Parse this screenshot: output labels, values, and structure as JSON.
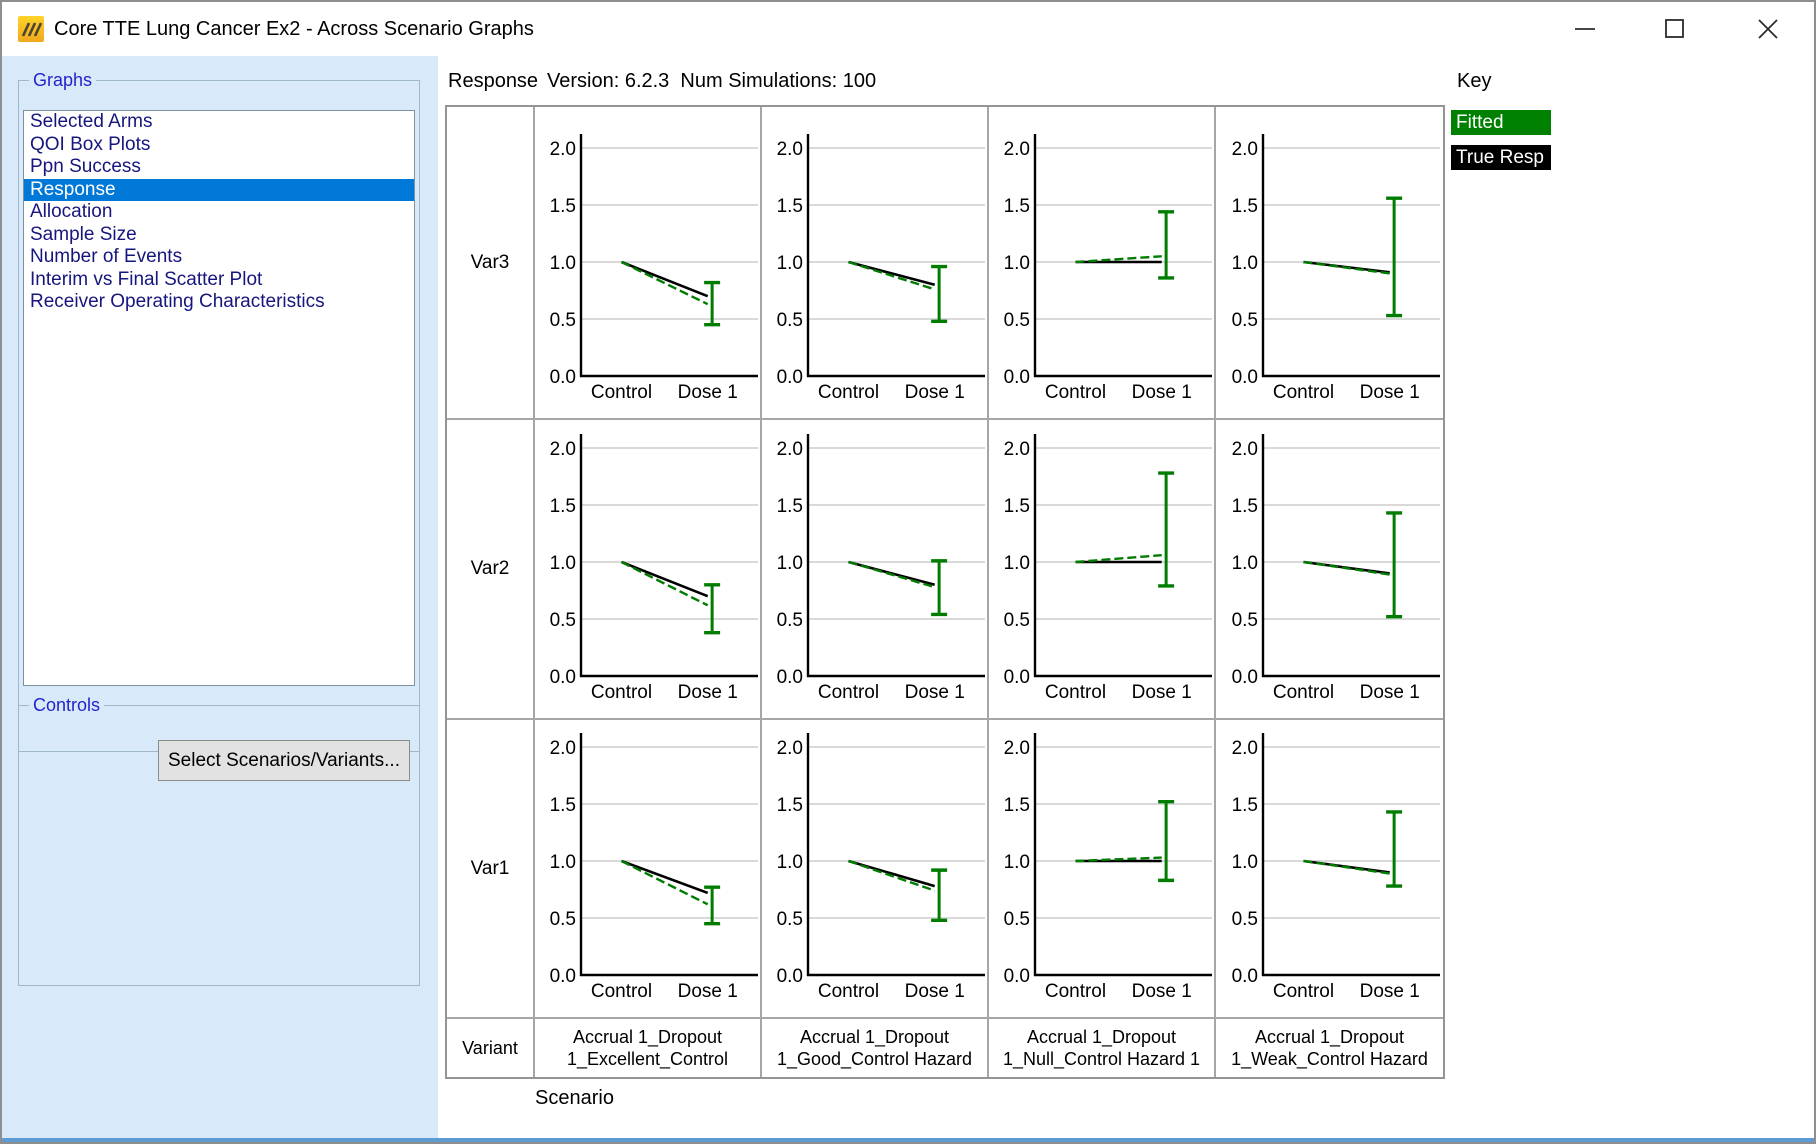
{
  "window": {
    "title": "Core TTE Lung Cancer Ex2 - Across Scenario Graphs",
    "controls": {
      "minimize": "minimize",
      "maximize": "maximize",
      "close": "close"
    }
  },
  "sidebar": {
    "graphs_group_label": "Graphs",
    "graph_items": [
      {
        "label": "Selected Arms",
        "selected": false
      },
      {
        "label": "QOI Box Plots",
        "selected": false
      },
      {
        "label": "Ppn Success",
        "selected": false
      },
      {
        "label": "Response",
        "selected": true
      },
      {
        "label": "Allocation",
        "selected": false
      },
      {
        "label": "Sample Size",
        "selected": false
      },
      {
        "label": "Number of Events",
        "selected": false
      },
      {
        "label": "Interim vs Final Scatter Plot",
        "selected": false
      },
      {
        "label": "Receiver Operating Characteristics",
        "selected": false
      }
    ],
    "controls_group_label": "Controls",
    "select_button_label": "Select Scenarios/Variants..."
  },
  "header": {
    "graph_title": "Response",
    "version_info": "Version: 6.2.3  Num Simulations: 100",
    "key_label": "Key"
  },
  "legend": {
    "items": [
      {
        "label": "Fitted",
        "color": "#008000",
        "text_color": "#ffffff"
      },
      {
        "label": "True Resp",
        "color": "#000000",
        "text_color": "#ffffff"
      }
    ]
  },
  "chart_data": {
    "type": "line",
    "x_categories": [
      "Control",
      "Dose 1"
    ],
    "y_ticks": [
      0.0,
      0.5,
      1.0,
      1.5,
      2.0
    ],
    "ylim": [
      0.0,
      2.2
    ],
    "grid_on": true,
    "series_colors": {
      "fitted": "#007c00",
      "true_resp": "#000000"
    },
    "rows": [
      {
        "label": "Var3",
        "cells": [
          {
            "true_resp": [
              1.0,
              0.7
            ],
            "fitted": [
              1.0,
              0.63
            ],
            "error_low": 0.45,
            "error_high": 0.82
          },
          {
            "true_resp": [
              1.0,
              0.8
            ],
            "fitted": [
              1.0,
              0.76
            ],
            "error_low": 0.48,
            "error_high": 0.96
          },
          {
            "true_resp": [
              1.0,
              1.0
            ],
            "fitted": [
              1.0,
              1.05
            ],
            "error_low": 0.86,
            "error_high": 1.44
          },
          {
            "true_resp": [
              1.0,
              0.91
            ],
            "fitted": [
              1.0,
              0.9
            ],
            "error_low": 0.53,
            "error_high": 1.56
          }
        ]
      },
      {
        "label": "Var2",
        "cells": [
          {
            "true_resp": [
              1.0,
              0.7
            ],
            "fitted": [
              1.0,
              0.62
            ],
            "error_low": 0.38,
            "error_high": 0.8
          },
          {
            "true_resp": [
              1.0,
              0.8
            ],
            "fitted": [
              1.0,
              0.78
            ],
            "error_low": 0.54,
            "error_high": 1.01
          },
          {
            "true_resp": [
              1.0,
              1.0
            ],
            "fitted": [
              1.0,
              1.06
            ],
            "error_low": 0.79,
            "error_high": 1.78
          },
          {
            "true_resp": [
              1.0,
              0.9
            ],
            "fitted": [
              1.0,
              0.89
            ],
            "error_low": 0.52,
            "error_high": 1.43
          }
        ]
      },
      {
        "label": "Var1",
        "cells": [
          {
            "true_resp": [
              1.0,
              0.72
            ],
            "fitted": [
              1.0,
              0.62
            ],
            "error_low": 0.45,
            "error_high": 0.77
          },
          {
            "true_resp": [
              1.0,
              0.78
            ],
            "fitted": [
              1.0,
              0.74
            ],
            "error_low": 0.48,
            "error_high": 0.92
          },
          {
            "true_resp": [
              1.0,
              1.0
            ],
            "fitted": [
              1.0,
              1.03
            ],
            "error_low": 0.83,
            "error_high": 1.52
          },
          {
            "true_resp": [
              1.0,
              0.9
            ],
            "fitted": [
              1.0,
              0.89
            ],
            "error_low": 0.78,
            "error_high": 1.43
          }
        ]
      }
    ],
    "variant_row_label": "Variant",
    "variants": [
      "Accrual 1_Dropout 1_Excellent_Control",
      "Accrual 1_Dropout 1_Good_Control Hazard",
      "Accrual 1_Dropout 1_Null_Control Hazard 1",
      "Accrual 1_Dropout 1_Weak_Control Hazard"
    ],
    "x_axis_label": "Scenario"
  }
}
